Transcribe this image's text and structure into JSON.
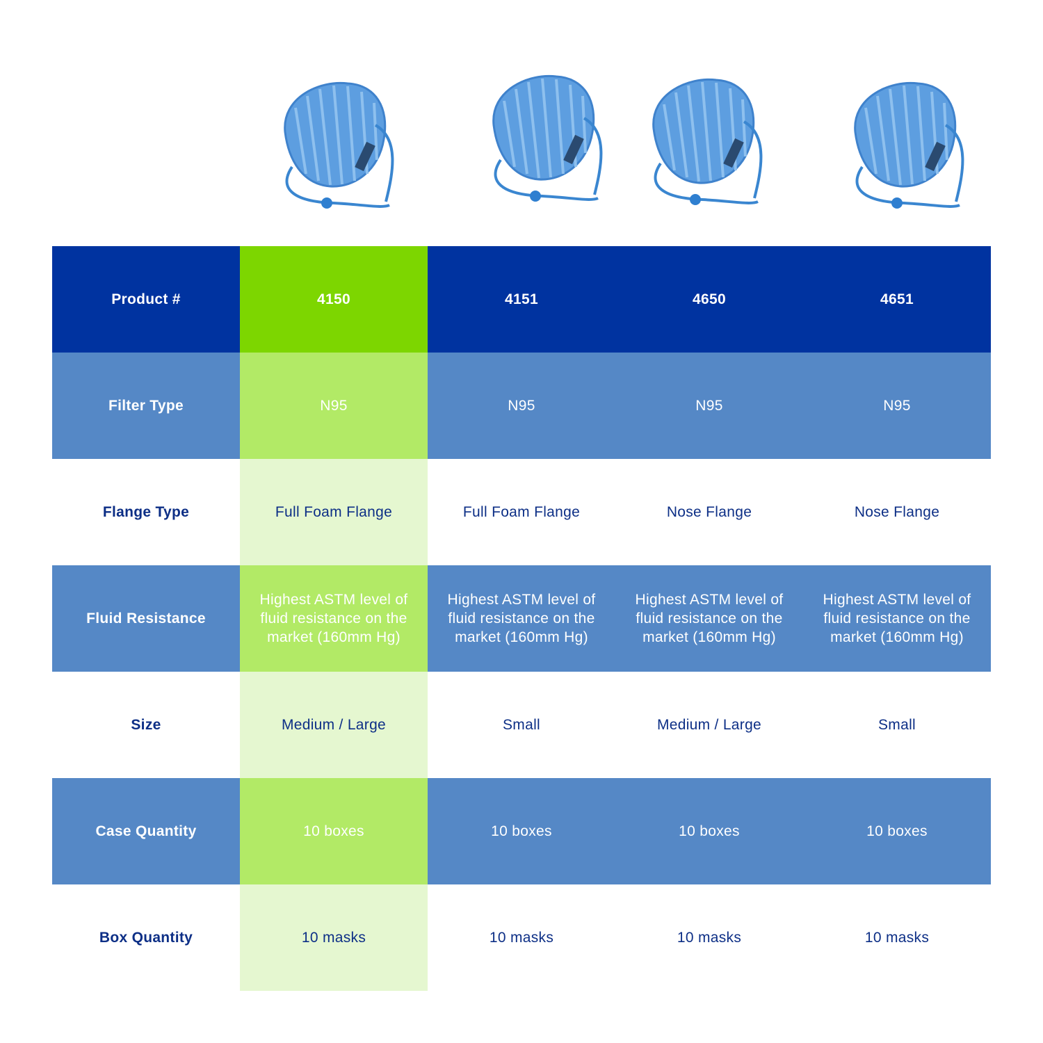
{
  "table": {
    "header": [
      "Product #",
      "4150",
      "4151",
      "4650",
      "4651"
    ],
    "rows": [
      [
        "Filter Type",
        "N95",
        "N95",
        "N95",
        "N95"
      ],
      [
        "Flange Type",
        "Full Foam Flange",
        "Full Foam Flange",
        "Nose Flange",
        "Nose Flange"
      ],
      [
        "Fluid Resistance",
        "Highest ASTM level of fluid resistance on the market (160mm Hg)",
        "Highest ASTM level of fluid resistance on the market (160mm Hg)",
        "Highest ASTM level of fluid resistance on the market (160mm Hg)",
        "Highest ASTM level of fluid resistance on the market (160mm Hg)"
      ],
      [
        "Size",
        "Medium / Large",
        "Small",
        "Medium / Large",
        "Small"
      ],
      [
        "Case Quantity",
        "10 boxes",
        "10 boxes",
        "10 boxes",
        "10 boxes"
      ],
      [
        "Box Quantity",
        "10 masks",
        "10 masks",
        "10 masks",
        "10 masks"
      ]
    ]
  }
}
